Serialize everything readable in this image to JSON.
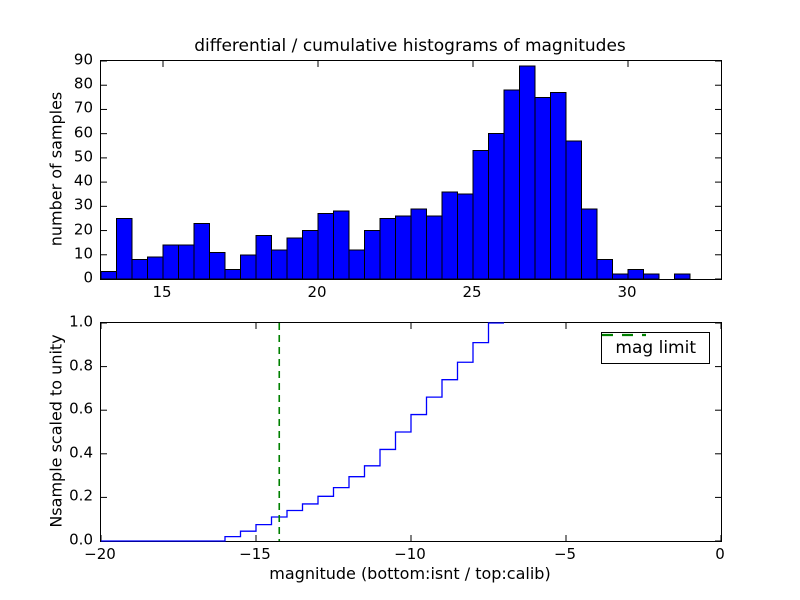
{
  "figure": {
    "background": "#ffffff",
    "frame_color": "#000000"
  },
  "chart_data": [
    {
      "type": "bar",
      "subplot": "top",
      "title": "differential / cumulative histograms of magnitudes",
      "ylabel": "number of samples",
      "bar_color": "#0000ff",
      "bar_edge_color": "#000000",
      "bin_start": 13.0,
      "bin_width": 0.5,
      "values": [
        3,
        25,
        8,
        9,
        14,
        14,
        23,
        11,
        4,
        10,
        18,
        12,
        17,
        20,
        27,
        28,
        12,
        20,
        25,
        26,
        29,
        26,
        36,
        35,
        53,
        60,
        78,
        88,
        75,
        77,
        57,
        29,
        8,
        2,
        4,
        2,
        0,
        2
      ],
      "xlim": [
        13,
        33
      ],
      "ylim": [
        0,
        90
      ],
      "xticks": [
        15,
        20,
        25,
        30
      ],
      "yticks": [
        0,
        10,
        20,
        30,
        40,
        50,
        60,
        70,
        80,
        90
      ],
      "grid": false
    },
    {
      "type": "step",
      "subplot": "bottom",
      "ylabel": "Nsample scaled to unity",
      "xlabel": "magnitude (bottom:isnt / top:calib)",
      "line_color": "#0000ff",
      "step_start": -16.0,
      "step_width": 0.5,
      "cumulative": [
        0.02,
        0.045,
        0.075,
        0.11,
        0.14,
        0.17,
        0.205,
        0.245,
        0.295,
        0.345,
        0.42,
        0.5,
        0.58,
        0.66,
        0.74,
        0.82,
        0.91,
        1.0
      ],
      "flat_zero_from": -20,
      "xlim": [
        -20,
        0
      ],
      "ylim": [
        0.0,
        1.0
      ],
      "xticks": [
        -20,
        -15,
        -10,
        -5,
        0
      ],
      "yticks": [
        0.0,
        0.2,
        0.4,
        0.6,
        0.8,
        1.0
      ],
      "grid": false,
      "vline": {
        "x": -14.25,
        "color": "#008000",
        "style": "dashed"
      },
      "legend": {
        "label": "mag limit",
        "position": "upper right"
      }
    }
  ]
}
